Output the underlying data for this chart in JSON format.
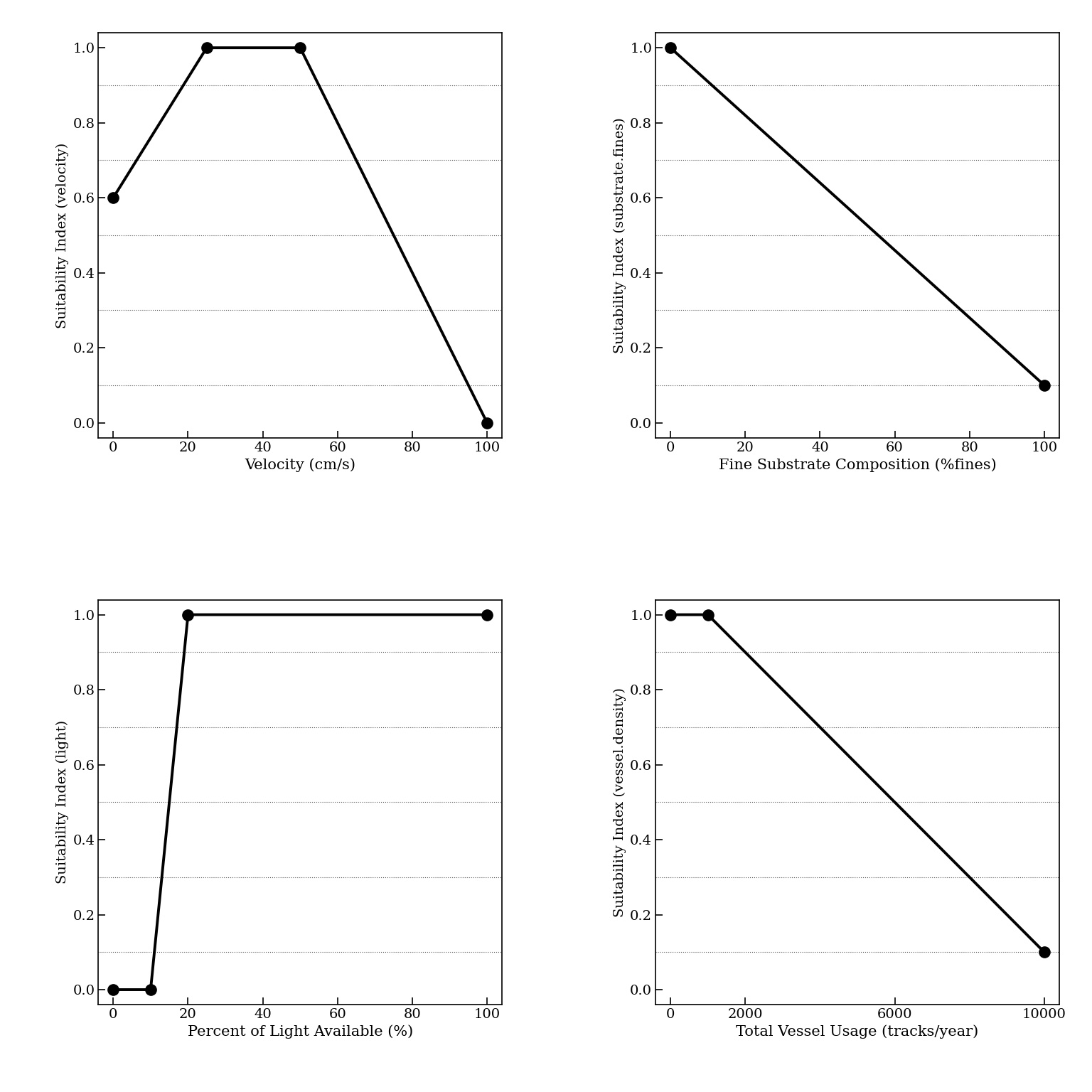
{
  "plots": [
    {
      "x": [
        0,
        25,
        50,
        100
      ],
      "y": [
        0.6,
        1.0,
        1.0,
        0.0
      ],
      "xlabel": "Velocity (cm/s)",
      "ylabel": "Suitability Index (velocity)",
      "xlim": [
        0,
        100
      ],
      "ylim": [
        0.0,
        1.0
      ],
      "xticks": [
        0,
        20,
        40,
        60,
        80,
        100
      ],
      "yticks": [
        0.0,
        0.2,
        0.4,
        0.6,
        0.8,
        1.0
      ],
      "minor_yticks": [
        0.0,
        0.1,
        0.2,
        0.3,
        0.4,
        0.5,
        0.6,
        0.7,
        0.8,
        0.9,
        1.0
      ]
    },
    {
      "x": [
        0,
        100
      ],
      "y": [
        1.0,
        0.1
      ],
      "xlabel": "Fine Substrate Composition (%fines)",
      "ylabel": "Suitability Index (substrate.fines)",
      "xlim": [
        0,
        100
      ],
      "ylim": [
        0.0,
        1.0
      ],
      "xticks": [
        0,
        20,
        40,
        60,
        80,
        100
      ],
      "yticks": [
        0.0,
        0.2,
        0.4,
        0.6,
        0.8,
        1.0
      ],
      "minor_yticks": [
        0.0,
        0.1,
        0.2,
        0.3,
        0.4,
        0.5,
        0.6,
        0.7,
        0.8,
        0.9,
        1.0
      ]
    },
    {
      "x": [
        0,
        10,
        20,
        100
      ],
      "y": [
        0.0,
        0.0,
        1.0,
        1.0
      ],
      "xlabel": "Percent of Light Available (%)",
      "ylabel": "Suitability Index (light)",
      "xlim": [
        0,
        100
      ],
      "ylim": [
        0.0,
        1.0
      ],
      "xticks": [
        0,
        20,
        40,
        60,
        80,
        100
      ],
      "yticks": [
        0.0,
        0.2,
        0.4,
        0.6,
        0.8,
        1.0
      ],
      "minor_yticks": [
        0.0,
        0.1,
        0.2,
        0.3,
        0.4,
        0.5,
        0.6,
        0.7,
        0.8,
        0.9,
        1.0
      ]
    },
    {
      "x": [
        0,
        1000,
        10000
      ],
      "y": [
        1.0,
        1.0,
        0.1
      ],
      "xlabel": "Total Vessel Usage (tracks/year)",
      "ylabel": "Suitability Index (vessel.density)",
      "xlim": [
        0,
        10000
      ],
      "ylim": [
        0.0,
        1.0
      ],
      "xticks": [
        0,
        2000,
        6000,
        10000
      ],
      "yticks": [
        0.0,
        0.2,
        0.4,
        0.6,
        0.8,
        1.0
      ],
      "minor_yticks": [
        0.0,
        0.1,
        0.2,
        0.3,
        0.4,
        0.5,
        0.6,
        0.7,
        0.8,
        0.9,
        1.0
      ]
    }
  ],
  "background_color": "#ffffff",
  "line_color": "#000000",
  "marker_color": "#000000",
  "marker_size": 11,
  "line_width": 2.8,
  "xlabel_fontsize": 15,
  "ylabel_fontsize": 14,
  "tick_fontsize": 14,
  "grid_color": "#555555",
  "grid_linewidth": 0.8
}
